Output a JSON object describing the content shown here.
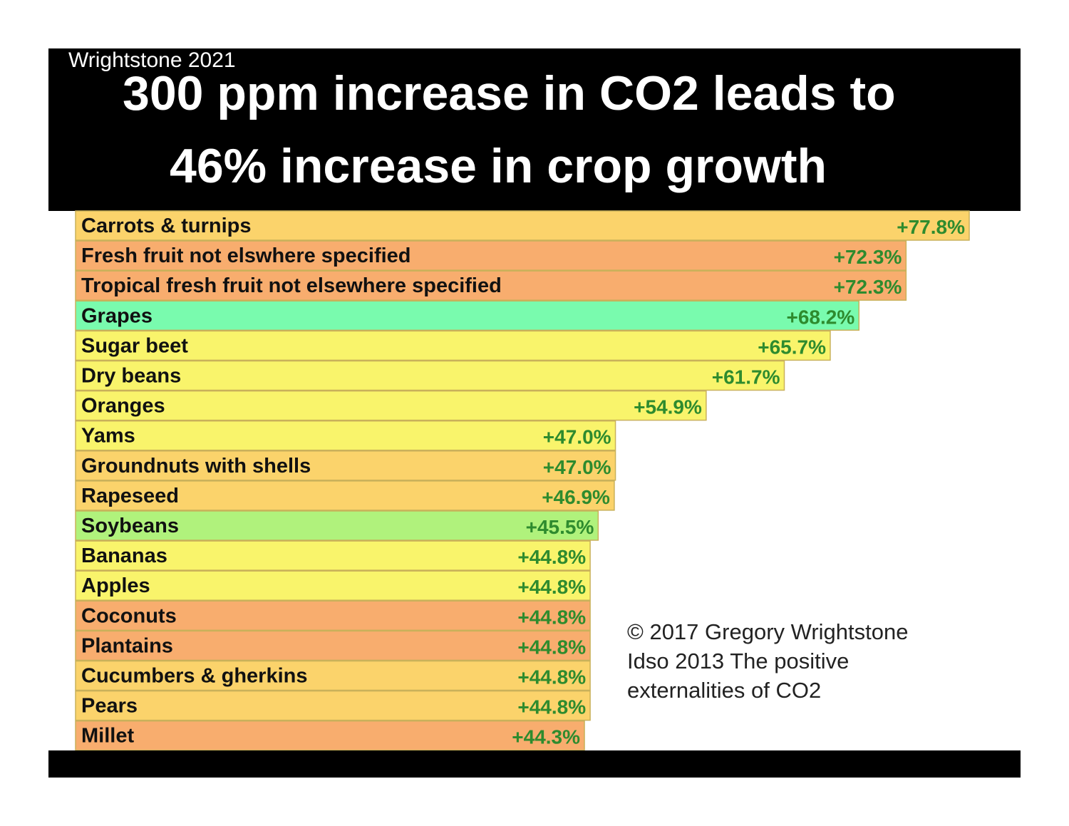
{
  "header": {
    "credit": "Wrightstone 2021",
    "title_line1": "300 ppm increase in CO2 leads to",
    "title_line2": "46% increase in crop growth"
  },
  "source": {
    "line1": "© 2017 Gregory Wrightstone",
    "line2": "Idso 2013 The positive",
    "line3": "externalities  of CO2"
  },
  "colors": {
    "yellow": "#f9f46b",
    "light_orange": "#fbd36b",
    "orange": "#f8ad6e",
    "teal": "#79fbae",
    "green": "#b0f27c",
    "value_text": "#2e8b2e",
    "label_text": "#111111"
  },
  "chart_data": {
    "type": "bar",
    "orientation": "horizontal",
    "title": "300 ppm increase in CO2 leads to 46% increase in crop growth",
    "xlabel": "",
    "ylabel": "",
    "xlim": [
      0,
      77.8
    ],
    "categories": [
      "Carrots & turnips",
      "Fresh fruit not elswhere specified",
      "Tropical fresh fruit not elsewhere specified",
      "Grapes",
      "Sugar beet",
      "Dry beans",
      "Oranges",
      "Yams",
      "Groundnuts with shells",
      "Rapeseed",
      "Soybeans",
      "Bananas",
      "Apples",
      "Coconuts",
      "Plantains",
      "Cucumbers & gherkins",
      "Pears",
      "Millet"
    ],
    "values": [
      77.8,
      72.3,
      72.3,
      68.2,
      65.7,
      61.7,
      54.9,
      47.0,
      47.0,
      46.9,
      45.5,
      44.8,
      44.8,
      44.8,
      44.8,
      44.8,
      44.8,
      44.3
    ],
    "value_labels": [
      "+77.8%",
      "+72.3%",
      "+72.3%",
      "+68.2%",
      "+65.7%",
      "+61.7%",
      "+54.9%",
      "+47.0%",
      "+47.0%",
      "+46.9%",
      "+45.5%",
      "+44.8%",
      "+44.8%",
      "+44.8%",
      "+44.8%",
      "+44.8%",
      "+44.8%",
      "+44.3%"
    ],
    "bar_colors": [
      "light_orange",
      "orange",
      "orange",
      "teal",
      "yellow",
      "yellow",
      "yellow",
      "yellow",
      "light_orange",
      "light_orange",
      "green",
      "yellow",
      "yellow",
      "orange",
      "orange",
      "light_orange",
      "light_orange",
      "orange"
    ]
  }
}
